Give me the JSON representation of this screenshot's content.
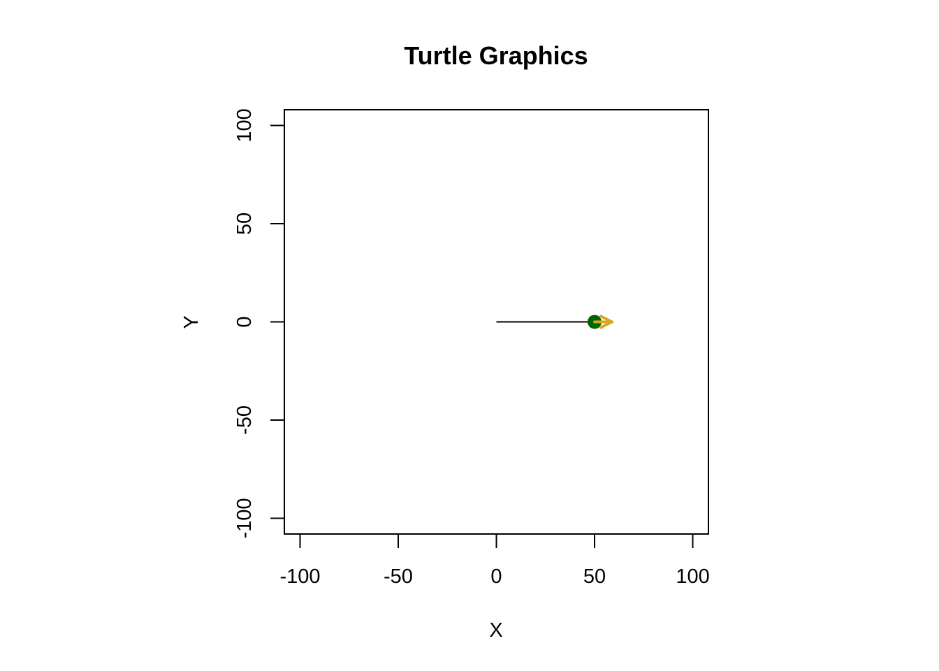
{
  "chart_data": {
    "type": "line",
    "title": "Turtle Graphics",
    "xlabel": "X",
    "ylabel": "Y",
    "xlim": [
      -108,
      108
    ],
    "ylim": [
      -108,
      108
    ],
    "x_ticks": [
      -100,
      -50,
      0,
      50,
      100
    ],
    "y_ticks": [
      -100,
      -50,
      0,
      50,
      100
    ],
    "x_tick_labels": [
      "-100",
      "-50",
      "0",
      "50",
      "100"
    ],
    "y_tick_labels": [
      "-100",
      "-50",
      "0",
      "50",
      "100"
    ],
    "grid": false,
    "legend": "none",
    "series": [
      {
        "x": [
          0,
          50
        ],
        "y": [
          0,
          0
        ],
        "color": "#000000"
      }
    ],
    "turtle": {
      "x": 50,
      "y": 0,
      "heading_degrees": 0,
      "body_color": "#006400",
      "arrow_color": "#DAA520"
    }
  }
}
